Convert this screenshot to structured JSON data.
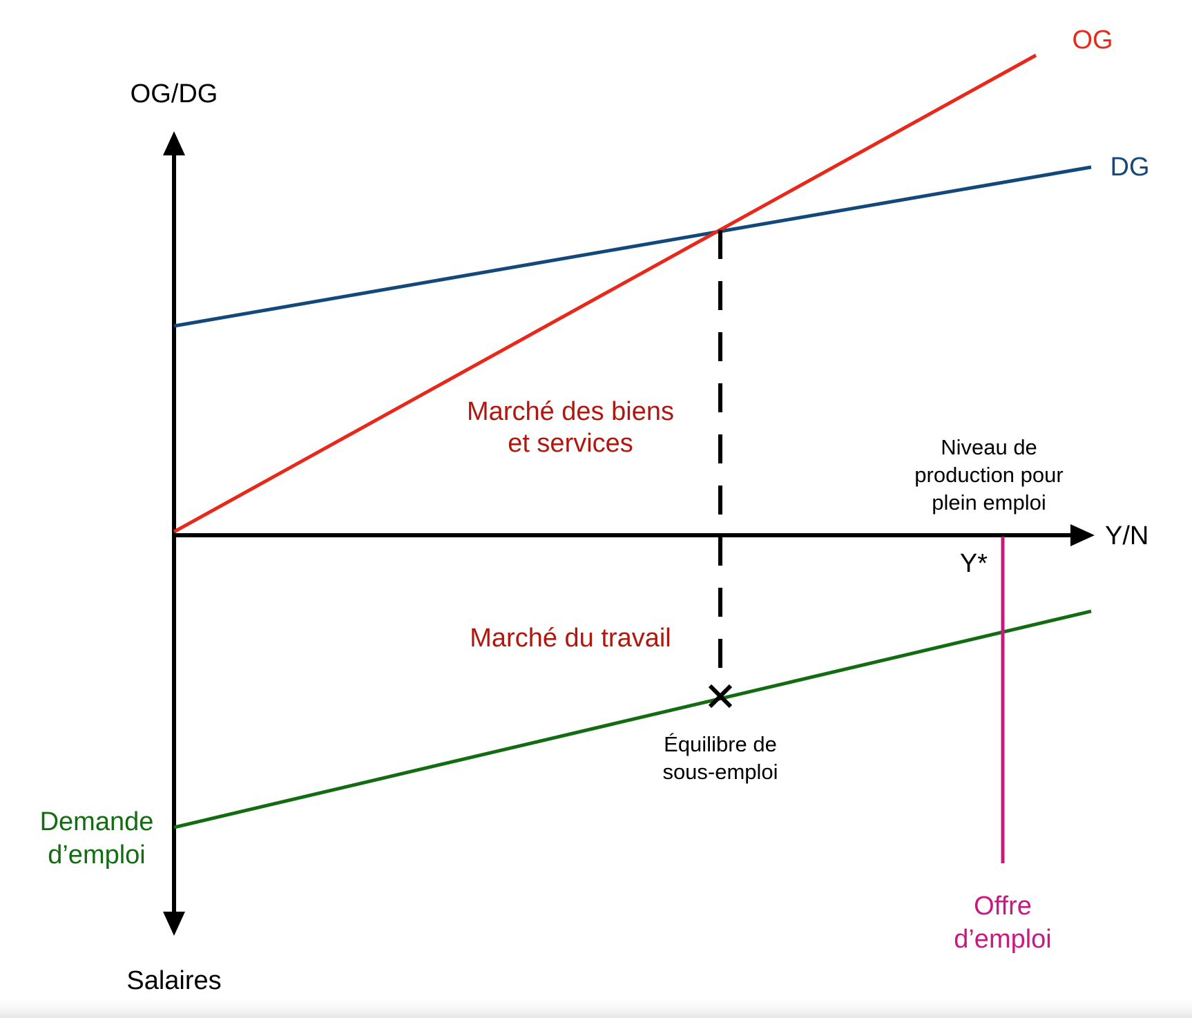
{
  "diagram": {
    "axes": {
      "top_label": "OG/DG",
      "bottom_label": "Salaires",
      "right_label": "Y/N"
    },
    "curves": {
      "og": {
        "label": "OG",
        "color": "#e8281b"
      },
      "dg": {
        "label": "DG",
        "color": "#13487a"
      },
      "labor_demand": {
        "label_line1": "Demande",
        "label_line2": "d’emploi",
        "color": "#146c12"
      },
      "labor_supply": {
        "label_line1": "Offre",
        "label_line2": "d’emploi",
        "color": "#c8197f"
      }
    },
    "markets": {
      "goods_line1": "Marché des biens",
      "goods_line2": "et services",
      "labor": "Marché du travail"
    },
    "full_employment": {
      "line1": "Niveau de",
      "line2": "production pour",
      "line3": "plein emploi",
      "marker": "Y*"
    },
    "equilibrium": {
      "line1": "Équilibre de",
      "line2": "sous-emploi"
    }
  }
}
